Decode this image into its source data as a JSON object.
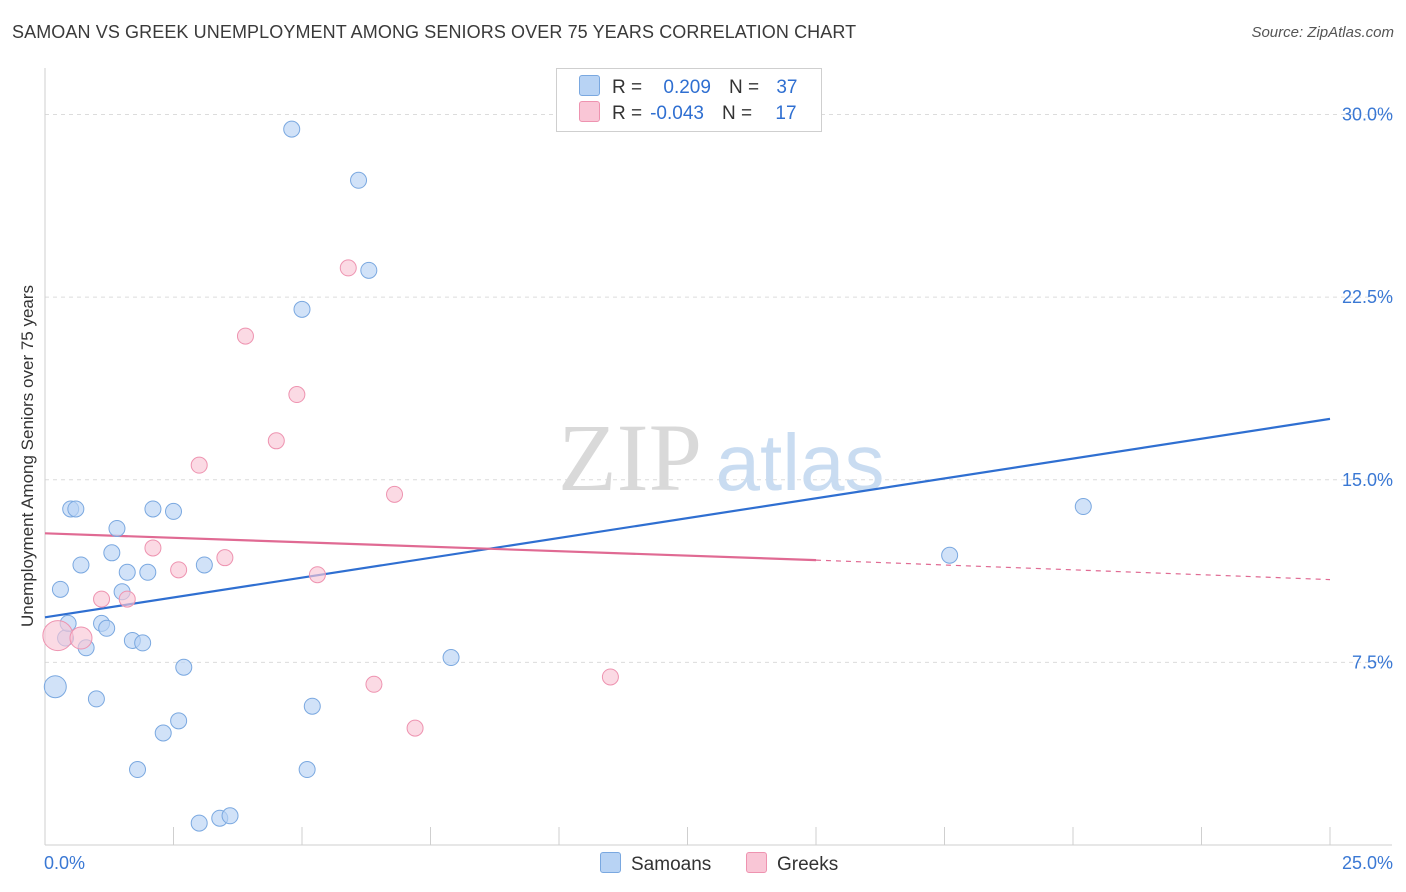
{
  "title": "SAMOAN VS GREEK UNEMPLOYMENT AMONG SENIORS OVER 75 YEARS CORRELATION CHART",
  "source": "Source: ZipAtlas.com",
  "watermark": {
    "zip": "ZIP",
    "atlas": "atlas"
  },
  "colors": {
    "blue_fill": "#b8d3f4",
    "blue_stroke": "#7aa8e0",
    "blue_line": "#2f6fd1",
    "pink_fill": "#f9c6d6",
    "pink_stroke": "#ee93b0",
    "pink_line": "#e06a93",
    "axis_text": "#3a78d4",
    "grid": "#dcdcdc"
  },
  "legend": {
    "rows": [
      {
        "r_label": "R =",
        "r_value": "0.209",
        "n_label": "N =",
        "n_value": "37"
      },
      {
        "r_label": "R =",
        "r_value": "-0.043",
        "n_label": "N =",
        "n_value": "17"
      }
    ]
  },
  "bottom_legend": {
    "samoans": "Samoans",
    "greeks": "Greeks"
  },
  "chart_data": {
    "type": "scatter",
    "xlabel": "",
    "ylabel": "Unemployment Among Seniors over 75 years",
    "xlim": [
      0,
      25
    ],
    "ylim": [
      0,
      31.5
    ],
    "x_tick_labels": [
      {
        "value": 0,
        "label": "0.0%"
      },
      {
        "value": 25,
        "label": "25.0%"
      }
    ],
    "y_tick_labels": [
      {
        "value": 7.5,
        "label": "7.5%"
      },
      {
        "value": 15,
        "label": "15.0%"
      },
      {
        "value": 22.5,
        "label": "22.5%"
      },
      {
        "value": 30,
        "label": "30.0%"
      }
    ],
    "grid": true,
    "series": [
      {
        "name": "Samoans",
        "color": "#b8d3f4",
        "points": [
          [
            0.2,
            6.5,
            10
          ],
          [
            0.4,
            8.5,
            7
          ],
          [
            0.3,
            10.5,
            7
          ],
          [
            0.45,
            9.1,
            7
          ],
          [
            0.5,
            13.8,
            7
          ],
          [
            0.6,
            13.8,
            7
          ],
          [
            0.7,
            11.5,
            7
          ],
          [
            0.8,
            8.1,
            7
          ],
          [
            1.0,
            6.0,
            7
          ],
          [
            1.1,
            9.1,
            7
          ],
          [
            1.2,
            8.9,
            7
          ],
          [
            1.3,
            12.0,
            7
          ],
          [
            1.4,
            13.0,
            7
          ],
          [
            1.5,
            10.4,
            7
          ],
          [
            1.6,
            11.2,
            7
          ],
          [
            1.7,
            8.4,
            7
          ],
          [
            1.8,
            3.1,
            7
          ],
          [
            1.9,
            8.3,
            7
          ],
          [
            2.0,
            11.2,
            7
          ],
          [
            2.1,
            13.8,
            7
          ],
          [
            2.3,
            4.6,
            7
          ],
          [
            2.5,
            13.7,
            7
          ],
          [
            2.6,
            5.1,
            7
          ],
          [
            2.7,
            7.3,
            7
          ],
          [
            3.0,
            0.9,
            7
          ],
          [
            3.1,
            11.5,
            7
          ],
          [
            3.4,
            1.1,
            7
          ],
          [
            3.6,
            1.2,
            7
          ],
          [
            4.8,
            29.4,
            7
          ],
          [
            5.0,
            22.0,
            7
          ],
          [
            5.1,
            3.1,
            7
          ],
          [
            5.2,
            5.7,
            7
          ],
          [
            6.1,
            27.3,
            7
          ],
          [
            6.3,
            23.6,
            7
          ],
          [
            7.9,
            7.7,
            7
          ],
          [
            17.6,
            11.9,
            7
          ],
          [
            20.2,
            13.9,
            7
          ]
        ],
        "trend": {
          "x": [
            0,
            25
          ],
          "y": [
            9.35,
            17.5
          ],
          "style": "solid"
        }
      },
      {
        "name": "Greeks",
        "color": "#f9c6d6",
        "points": [
          [
            0.25,
            8.6,
            14
          ],
          [
            0.7,
            8.5,
            10
          ],
          [
            1.1,
            10.1,
            7
          ],
          [
            1.6,
            10.1,
            7
          ],
          [
            2.1,
            12.2,
            7
          ],
          [
            2.6,
            11.3,
            7
          ],
          [
            3.0,
            15.6,
            7
          ],
          [
            3.5,
            11.8,
            7
          ],
          [
            3.9,
            20.9,
            7
          ],
          [
            4.5,
            16.6,
            7
          ],
          [
            4.9,
            18.5,
            7
          ],
          [
            5.3,
            11.1,
            7
          ],
          [
            5.9,
            23.7,
            7
          ],
          [
            6.4,
            6.6,
            7
          ],
          [
            6.8,
            14.4,
            7
          ],
          [
            7.2,
            4.8,
            7
          ],
          [
            11.0,
            6.9,
            7
          ]
        ],
        "trend": {
          "x": [
            0,
            15
          ],
          "y": [
            12.8,
            11.7
          ],
          "style": "solid",
          "extension": {
            "x": [
              15,
              25
            ],
            "y": [
              11.7,
              10.9
            ],
            "style": "dashed"
          }
        }
      }
    ]
  }
}
